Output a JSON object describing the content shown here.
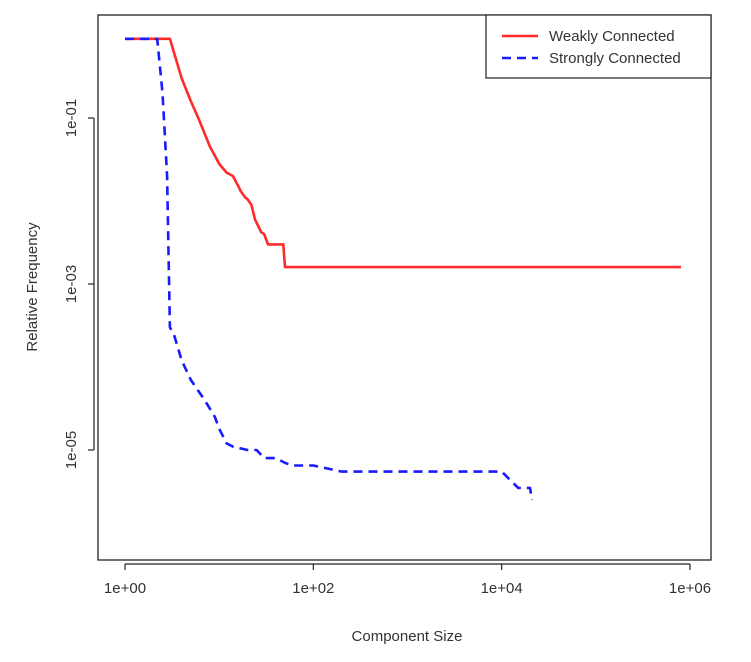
{
  "chart_data": {
    "type": "line",
    "xlabel": "Component Size",
    "ylabel": "Relative Frequency",
    "x_scale": "log",
    "y_scale": "log",
    "xlim": [
      1,
      1000000
    ],
    "ylim": [
      5e-07,
      1
    ],
    "x_ticks": [
      {
        "value": 1,
        "label": "1e+00"
      },
      {
        "value": 100,
        "label": "1e+02"
      },
      {
        "value": 10000,
        "label": "1e+04"
      },
      {
        "value": 1000000,
        "label": "1e+06"
      }
    ],
    "y_ticks": [
      {
        "value": 1e-05,
        "label": "1e-05"
      },
      {
        "value": 0.001,
        "label": "1e-03"
      },
      {
        "value": 0.1,
        "label": "1e-01"
      }
    ],
    "legend_position": "top-right",
    "grid": false,
    "series": [
      {
        "name": "Weakly Connected",
        "color": "#ff2a2a",
        "dash": "solid",
        "x": [
          1,
          3,
          4,
          5,
          6,
          7,
          8,
          9,
          10,
          12,
          14,
          16,
          17,
          19,
          20,
          22,
          24,
          26,
          28,
          30,
          33,
          35,
          40,
          48,
          50,
          55,
          60,
          80,
          100,
          500,
          1000,
          10000,
          100000,
          800000
        ],
        "y": [
          0.9,
          0.9,
          0.3,
          0.16,
          0.1,
          0.065,
          0.045,
          0.035,
          0.028,
          0.022,
          0.02,
          0.015,
          0.013,
          0.011,
          0.0105,
          0.009,
          0.006,
          0.005,
          0.0042,
          0.004,
          0.003,
          0.003,
          0.003,
          0.003,
          0.0016,
          0.0016,
          0.0016,
          0.0016,
          0.0016,
          0.0016,
          0.0016,
          0.0016,
          0.0016,
          0.0016
        ]
      },
      {
        "name": "Strongly Connected",
        "color": "#1a1aff",
        "dash": "dashed",
        "x": [
          1,
          2.2,
          2.5,
          2.8,
          3,
          3.3,
          4,
          5,
          7,
          9,
          10,
          12,
          14,
          20,
          25,
          30,
          40,
          50,
          60,
          80,
          100,
          200,
          300,
          500,
          1000,
          2000,
          3000,
          5000,
          10000,
          15000,
          20000,
          21000
        ],
        "y": [
          0.9,
          0.9,
          0.2,
          0.02,
          0.0003,
          0.00025,
          0.00012,
          7e-05,
          4e-05,
          2.5e-05,
          1.8e-05,
          1.2e-05,
          1.1e-05,
          1e-05,
          1e-05,
          8e-06,
          8e-06,
          7e-06,
          6.5e-06,
          6.5e-06,
          6.5e-06,
          5.5e-06,
          5.5e-06,
          5.5e-06,
          5.5e-06,
          5.5e-06,
          5.5e-06,
          5.5e-06,
          5.5e-06,
          3.5e-06,
          3.5e-06,
          2.5e-06
        ]
      }
    ]
  }
}
